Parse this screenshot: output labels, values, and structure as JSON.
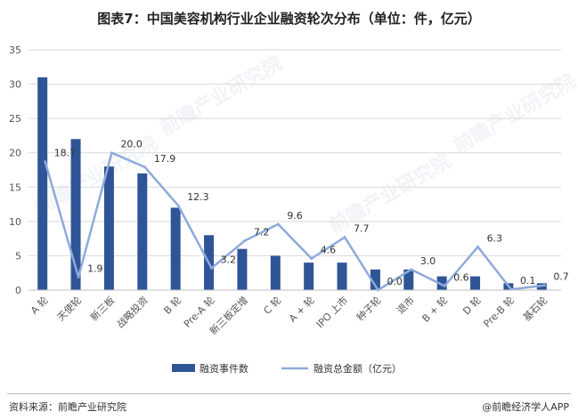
{
  "title": "图表7：中国美容机构行业企业融资轮次分布（单位：件，亿元）",
  "watermark": "前瞻产业研究院",
  "footer": {
    "source": "资料来源：前瞻产业研究院",
    "brand": "@前瞻经济学人APP"
  },
  "colors": {
    "bar": "#2f5597",
    "line": "#8eaadb",
    "grid": "#d9d9d9",
    "axis_text": "#555555"
  },
  "chart_data": {
    "type": "bar",
    "title": "图表7：中国美容机构行业企业融资轮次分布（单位：件，亿元）",
    "categories": [
      "A 轮",
      "天使轮",
      "新三板",
      "战略投资",
      "B 轮",
      "Pre-A 轮",
      "新三板定增",
      "C 轮",
      "A + 轮",
      "IPO 上市",
      "种子轮",
      "退市",
      "B + 轮",
      "D 轮",
      "Pre-B 轮",
      "基石轮"
    ],
    "ylim": [
      0,
      35
    ],
    "yticks": [
      0,
      5,
      10,
      15,
      20,
      25,
      30,
      35
    ],
    "grid": true,
    "legend_position": "bottom",
    "series": [
      {
        "name": "融资事件数",
        "type": "bar",
        "values": [
          31,
          22,
          18,
          17,
          12,
          8,
          6,
          5,
          4,
          4,
          3,
          3,
          2,
          2,
          1,
          1
        ]
      },
      {
        "name": "融资总金额（亿元）",
        "type": "line",
        "values": [
          18.7,
          1.9,
          20.0,
          17.9,
          12.3,
          3.2,
          7.2,
          9.6,
          4.6,
          7.7,
          0.0,
          3.0,
          0.6,
          6.3,
          0.1,
          0.7
        ],
        "labels": [
          "18.7",
          "1.9",
          "20.0",
          "17.9",
          "12.3",
          "3.2",
          "7.2",
          "9.6",
          "4.6",
          "7.7",
          "0.0",
          "3.0",
          "0.6",
          "6.3",
          "0.1",
          "0.7"
        ]
      }
    ]
  }
}
